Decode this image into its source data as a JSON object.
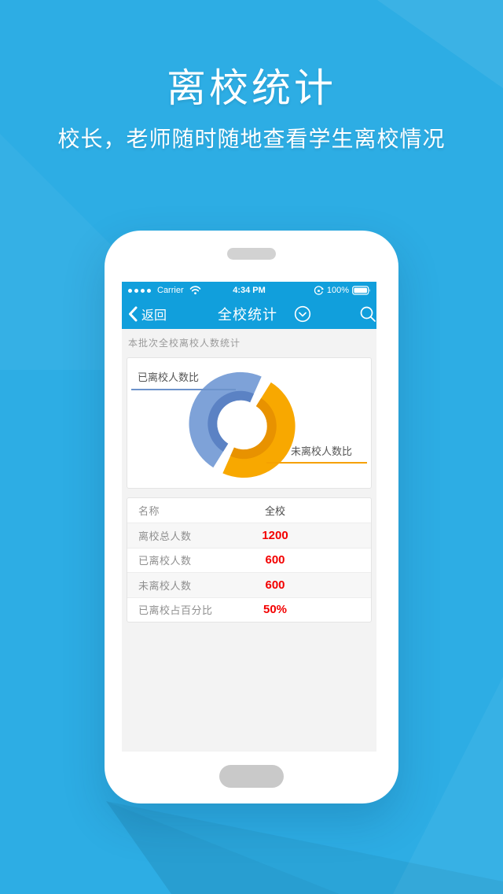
{
  "hero": {
    "title": "离校统计",
    "subtitle": "校长，老师随时随地查看学生离校情况"
  },
  "statusbar": {
    "carrier": "Carrier",
    "time": "4:34 PM",
    "battery_percent": "100%"
  },
  "navbar": {
    "back_label": "返回",
    "title": "全校统计"
  },
  "section_title": "本批次全校离校人数统计",
  "chart_data": {
    "type": "pie",
    "donut": true,
    "title": "本批次全校离校人数统计",
    "legend_position": "callout-lines",
    "segments": [
      {
        "label": "已离校人数比",
        "value": 50,
        "color": "#7ea2d8",
        "inner_color": "#5b82c4",
        "offset": [
          0,
          0
        ]
      },
      {
        "label": "未离校人数比",
        "value": 50,
        "color": "#f8a800",
        "inner_color": "#e89200",
        "offset": [
          4,
          3
        ]
      }
    ]
  },
  "table": {
    "rows": [
      {
        "label": "名称",
        "value": "全校"
      },
      {
        "label": "离校总人数",
        "value": "1200"
      },
      {
        "label": "已离校人数",
        "value": "600"
      },
      {
        "label": "未离校人数",
        "value": "600"
      },
      {
        "label": "已离校占百分比",
        "value": "50%"
      }
    ]
  },
  "colors": {
    "background": "#2dade4",
    "appbar": "#119fdc",
    "value_red": "#f30000",
    "line_blue": "#6d93cb",
    "line_orange": "#f5a100"
  }
}
